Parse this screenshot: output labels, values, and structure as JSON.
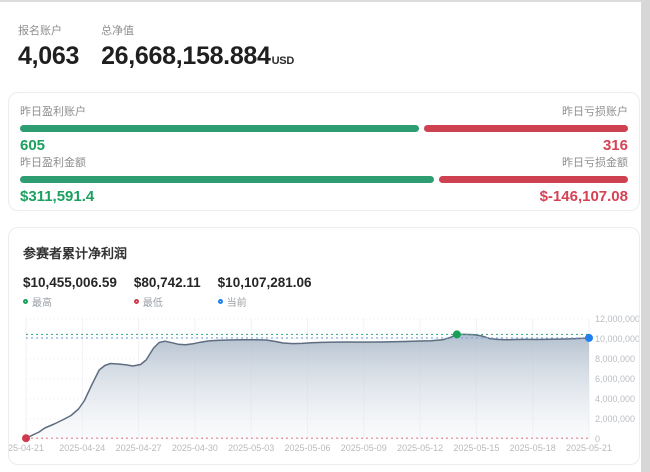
{
  "top_stats": {
    "accounts": {
      "label": "报名账户",
      "value": "4,063"
    },
    "net_value": {
      "label": "总净值",
      "value": "26,668,158.884",
      "unit": "USD"
    }
  },
  "yesterday_card": {
    "green_bar": "#2e9e72",
    "red_bar": "#cd4150",
    "green_text": "#1ba05f",
    "red_text": "#d64254",
    "rows": [
      {
        "left_label": "昨日盈利账户",
        "right_label": "昨日亏损账户",
        "left_value": "605",
        "right_value": "316",
        "left_num": 605,
        "right_num": 316
      },
      {
        "left_label": "昨日盈利金额",
        "right_label": "昨日亏损金额",
        "left_value": "$311,591.4",
        "right_value": "$-146,107.08",
        "left_num": 311591.4,
        "right_num": 146107.08
      }
    ]
  },
  "chart_card": {
    "title": "参赛者累计净利润"
  },
  "chart_data": {
    "type": "area",
    "title": "参赛者累计净利润",
    "x_range_days": 30,
    "ylim": [
      0,
      12000000
    ],
    "grid": true,
    "legend_position": "top-left",
    "x_tick_labels": [
      "25-04-21",
      "2025-04-24",
      "2025-04-27",
      "2025-04-30",
      "2025-05-03",
      "2025-05-06",
      "2025-05-09",
      "2025-05-12",
      "2025-05-15",
      "2025-05-18",
      "2025-05-21"
    ],
    "y_tick_labels": [
      "12,000,000",
      "10,000,000",
      "8,000,000",
      "6,000,000",
      "4,000,000",
      "2,000,000",
      "0"
    ],
    "markers": [
      {
        "id": "high",
        "label": "最高",
        "display": "$10,455,006.59",
        "value": 10455006.59,
        "day": 22.96,
        "color": "#18a058",
        "line_color": "#4aa886"
      },
      {
        "id": "low",
        "label": "最低",
        "display": "$80,742.11",
        "value": 80742.11,
        "day": 0,
        "color": "#cf3a4e",
        "line_color": "#df8490"
      },
      {
        "id": "current",
        "label": "当前",
        "display": "$10,107,281.06",
        "value": 10107281.06,
        "day": 30,
        "color": "#2080f0",
        "line_color": "#74a6dd"
      }
    ],
    "series": [
      {
        "name": "参赛者累计净利润",
        "line_color": "#5e6d80",
        "fill_top": "#b0bdcc",
        "fill_bottom": "#eef1f5",
        "points": [
          [
            0,
            80742
          ],
          [
            0.7,
            700000
          ],
          [
            1,
            1100000
          ],
          [
            1.5,
            1500000
          ],
          [
            2,
            1950000
          ],
          [
            2.4,
            2350000
          ],
          [
            2.8,
            3000000
          ],
          [
            3.1,
            3800000
          ],
          [
            3.5,
            5400000
          ],
          [
            3.9,
            6900000
          ],
          [
            4.2,
            7350000
          ],
          [
            4.5,
            7550000
          ],
          [
            4.9,
            7500000
          ],
          [
            5.3,
            7430000
          ],
          [
            5.7,
            7300000
          ],
          [
            6.1,
            7450000
          ],
          [
            6.4,
            7900000
          ],
          [
            6.8,
            9100000
          ],
          [
            7.1,
            9650000
          ],
          [
            7.4,
            9780000
          ],
          [
            7.8,
            9620000
          ],
          [
            8.1,
            9480000
          ],
          [
            8.5,
            9420000
          ],
          [
            8.9,
            9520000
          ],
          [
            9.3,
            9680000
          ],
          [
            9.7,
            9800000
          ],
          [
            10.2,
            9860000
          ],
          [
            10.8,
            9900000
          ],
          [
            11.5,
            9920000
          ],
          [
            12.2,
            9930000
          ],
          [
            12.8,
            9900000
          ],
          [
            13.3,
            9750000
          ],
          [
            13.7,
            9600000
          ],
          [
            14.2,
            9540000
          ],
          [
            14.7,
            9560000
          ],
          [
            15.2,
            9620000
          ],
          [
            15.8,
            9660000
          ],
          [
            16.5,
            9690000
          ],
          [
            17.2,
            9700000
          ],
          [
            18,
            9690000
          ],
          [
            18.8,
            9700000
          ],
          [
            19.5,
            9720000
          ],
          [
            20.2,
            9750000
          ],
          [
            21,
            9800000
          ],
          [
            21.6,
            9830000
          ],
          [
            22.2,
            9920000
          ],
          [
            22.6,
            10150000
          ],
          [
            22.96,
            10455006.59
          ],
          [
            23.4,
            10460000
          ],
          [
            23.9,
            10430000
          ],
          [
            24.3,
            10300000
          ],
          [
            24.7,
            10050000
          ],
          [
            25.1,
            9960000
          ],
          [
            25.6,
            9920000
          ],
          [
            26.1,
            9950000
          ],
          [
            26.7,
            9960000
          ],
          [
            27.3,
            9950000
          ],
          [
            28,
            9970000
          ],
          [
            28.7,
            10000000
          ],
          [
            29.3,
            10040000
          ],
          [
            30,
            10107281.06
          ]
        ]
      }
    ]
  }
}
